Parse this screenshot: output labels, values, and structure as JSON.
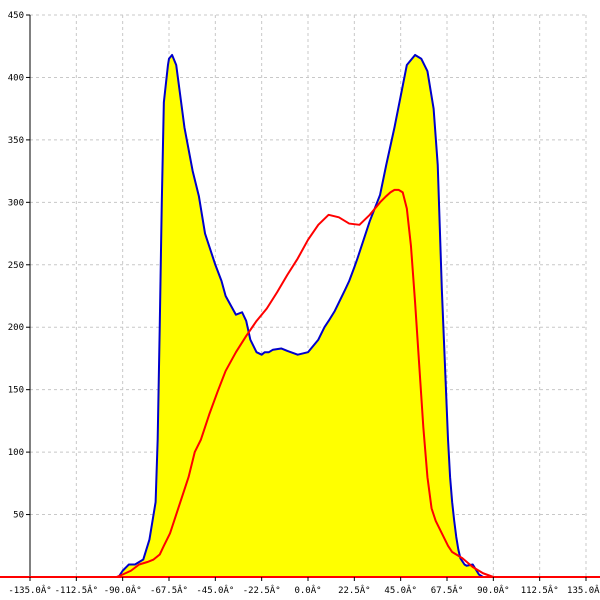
{
  "chart_data": {
    "type": "area",
    "title": "",
    "xlabel": "",
    "ylabel": "",
    "xlim": [
      -135,
      135
    ],
    "ylim": [
      0,
      450
    ],
    "grid": true,
    "x_ticks": [
      {
        "value": -135,
        "label": "-135.0Â°"
      },
      {
        "value": -112.5,
        "label": "-112.5Â°"
      },
      {
        "value": -90,
        "label": "-90.0Â°"
      },
      {
        "value": -67.5,
        "label": "-67.5Â°"
      },
      {
        "value": -45,
        "label": "-45.0Â°"
      },
      {
        "value": -22.5,
        "label": "-22.5Â°"
      },
      {
        "value": 0,
        "label": "0.0Â°"
      },
      {
        "value": 22.5,
        "label": "22.5Â°"
      },
      {
        "value": 45,
        "label": "45.0Â°"
      },
      {
        "value": 67.5,
        "label": "67.5Â°"
      },
      {
        "value": 90,
        "label": "90.0Â°"
      },
      {
        "value": 112.5,
        "label": "112.5Â°"
      },
      {
        "value": 135,
        "label": "135.0Â°"
      }
    ],
    "y_ticks": [
      {
        "value": 50,
        "label": "50"
      },
      {
        "value": 100,
        "label": "100"
      },
      {
        "value": 150,
        "label": "150"
      },
      {
        "value": 200,
        "label": "200"
      },
      {
        "value": 250,
        "label": "250"
      },
      {
        "value": 300,
        "label": "300"
      },
      {
        "value": 350,
        "label": "350"
      },
      {
        "value": 400,
        "label": "400"
      },
      {
        "value": 450,
        "label": "450"
      }
    ],
    "series": [
      {
        "color": "#0000cc",
        "fill": "#ffff00",
        "filled": true,
        "x": [
          -135,
          -92,
          -90,
          -87,
          -84,
          -80,
          -77,
          -74,
          -73,
          -72,
          -71,
          -70,
          -68,
          -67.5,
          -66,
          -64,
          -62,
          -60,
          -56,
          -53,
          -50,
          -45,
          -42,
          -40,
          -35,
          -32,
          -30,
          -28,
          -25,
          -22.5,
          -21,
          -19,
          -17,
          -13,
          -10,
          -5,
          0,
          5,
          8,
          10,
          13,
          18,
          20,
          22.5,
          24,
          27,
          30,
          35,
          38,
          42,
          45,
          48,
          52,
          55,
          58,
          61,
          63,
          64,
          65,
          66,
          67,
          68,
          69,
          70,
          71,
          72,
          73,
          74,
          76,
          77,
          80,
          83,
          85,
          90,
          94,
          96,
          98,
          100,
          135
        ],
        "y": [
          0,
          0,
          5,
          10,
          10,
          14,
          30,
          60,
          110,
          200,
          300,
          380,
          410,
          415,
          418,
          410,
          385,
          360,
          325,
          305,
          275,
          250,
          237,
          225,
          210,
          212,
          205,
          190,
          180,
          178,
          180,
          180,
          182,
          183,
          181,
          178,
          180,
          190,
          200,
          205,
          213,
          230,
          237,
          248,
          255,
          270,
          285,
          306,
          330,
          360,
          385,
          410,
          418,
          415,
          405,
          375,
          330,
          280,
          230,
          190,
          150,
          110,
          80,
          60,
          45,
          32,
          22,
          15,
          10,
          9,
          10,
          2,
          0,
          0,
          0,
          0,
          0,
          0,
          0
        ]
      },
      {
        "color": "#ff0000",
        "filled": false,
        "x": [
          -135,
          -93,
          -90,
          -86,
          -82,
          -78,
          -75,
          -72,
          -70,
          -67,
          -65,
          -62,
          -58,
          -55,
          -52,
          -48,
          -44,
          -40,
          -35,
          -30,
          -25,
          -20,
          -15,
          -10,
          -5,
          0,
          5,
          10,
          15,
          20,
          25,
          30,
          35,
          38,
          40,
          42,
          44,
          46,
          48,
          50,
          52,
          54,
          56,
          58,
          60,
          62,
          65,
          68,
          70,
          75,
          80,
          85,
          90,
          94,
          96,
          98,
          100,
          135
        ],
        "y": [
          0,
          0,
          2,
          5,
          10,
          12,
          14,
          18,
          25,
          35,
          45,
          60,
          80,
          100,
          110,
          130,
          148,
          165,
          180,
          193,
          205,
          215,
          228,
          242,
          255,
          270,
          282,
          290,
          288,
          283,
          282,
          290,
          300,
          305,
          308,
          310,
          310,
          308,
          295,
          265,
          220,
          170,
          120,
          80,
          55,
          45,
          35,
          25,
          20,
          15,
          8,
          3,
          0,
          0,
          0,
          0,
          0,
          0
        ]
      }
    ]
  }
}
